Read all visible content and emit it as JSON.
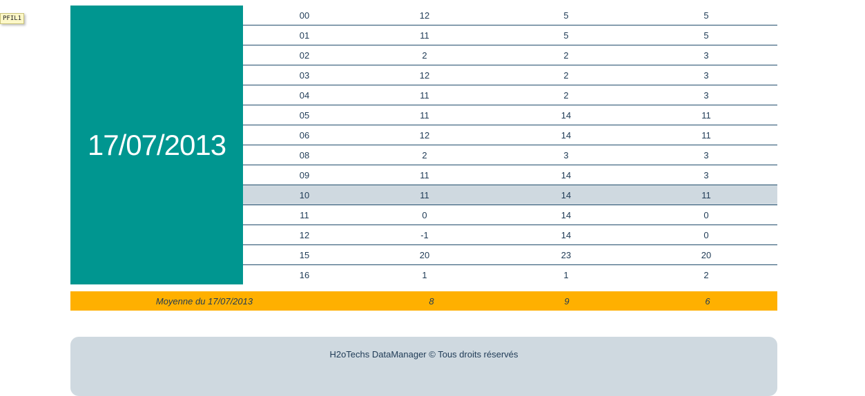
{
  "tag": {
    "label": "PFIL1"
  },
  "date": "17/07/2013",
  "rows": [
    [
      "00",
      "12",
      "5",
      "5"
    ],
    [
      "01",
      "11",
      "5",
      "5"
    ],
    [
      "02",
      "2",
      "2",
      "3"
    ],
    [
      "03",
      "12",
      "2",
      "3"
    ],
    [
      "04",
      "11",
      "2",
      "3"
    ],
    [
      "05",
      "11",
      "14",
      "11"
    ],
    [
      "06",
      "12",
      "14",
      "11"
    ],
    [
      "08",
      "2",
      "3",
      "3"
    ],
    [
      "09",
      "11",
      "14",
      "3"
    ],
    [
      "10",
      "11",
      "14",
      "11"
    ],
    [
      "11",
      "0",
      "14",
      "0"
    ],
    [
      "12",
      "-1",
      "14",
      "0"
    ],
    [
      "15",
      "20",
      "23",
      "20"
    ],
    [
      "16",
      "1",
      "1",
      "2"
    ]
  ],
  "average": {
    "label": "Moyenne du 17/07/2013",
    "v1": "8",
    "v2": "9",
    "v3": "6"
  },
  "footer": {
    "text": "H2oTechs DataManager © Tous droits réservés"
  },
  "colors": {
    "date_block": "#009690",
    "highlight_row": "#cfd9e0",
    "average_bar": "#ffb000",
    "footer_bg": "#cfd9e0"
  }
}
